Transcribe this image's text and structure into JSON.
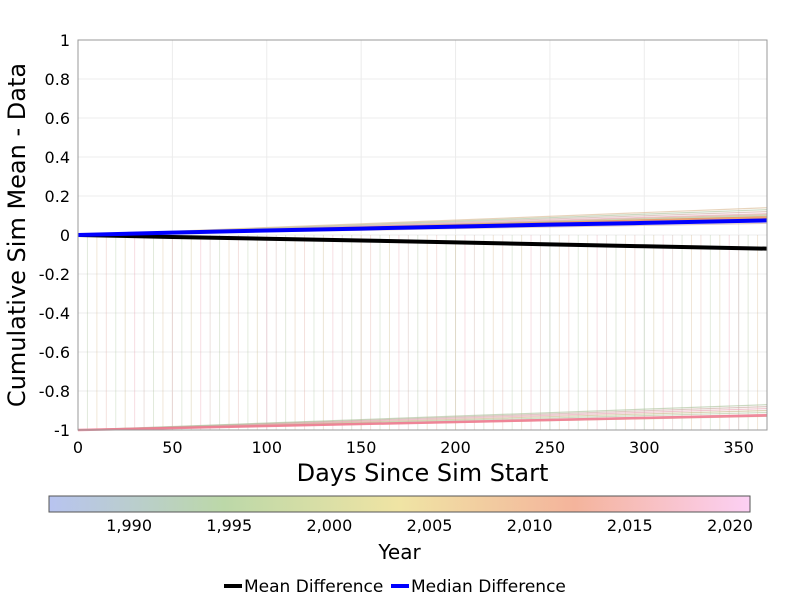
{
  "chart_data": {
    "type": "line",
    "xlabel": "Days Since Sim Start",
    "ylabel": "Cumulative Sim Mean - Data",
    "xlim": [
      0,
      365
    ],
    "ylim": [
      -1,
      1
    ],
    "x_ticks": [
      "0",
      "50",
      "100",
      "150",
      "200",
      "250",
      "300",
      "350"
    ],
    "x_tick_values": [
      0,
      50,
      100,
      150,
      200,
      250,
      300,
      350
    ],
    "y_ticks": [
      "1",
      "0.8",
      "0.6",
      "0.4",
      "0.2",
      "0",
      "-0.2",
      "-0.4",
      "-0.6",
      "-0.8",
      "-1"
    ],
    "y_tick_values": [
      1,
      0.8,
      0.6,
      0.4,
      0.2,
      0,
      -0.2,
      -0.4,
      -0.6,
      -0.8,
      -1
    ],
    "grid": true,
    "series": [
      {
        "name": "Mean Difference",
        "color": "#000000",
        "x": [
          0,
          50,
          100,
          150,
          200,
          250,
          300,
          365
        ],
        "values": [
          0,
          -0.01,
          -0.019,
          -0.028,
          -0.038,
          -0.048,
          -0.058,
          -0.07
        ]
      },
      {
        "name": "Median Difference",
        "color": "#0000ff",
        "x": [
          0,
          50,
          100,
          150,
          200,
          250,
          300,
          365
        ],
        "values": [
          0,
          0.012,
          0.023,
          0.033,
          0.043,
          0.053,
          0.062,
          0.075
        ]
      }
    ],
    "ensemble_upper_endpoints": [
      0.06,
      0.075,
      0.085,
      0.095,
      0.1,
      0.105,
      0.11,
      0.12,
      0.13,
      0.14
    ],
    "ensemble_lower_endpoints": [
      -0.93,
      -0.92,
      -0.91,
      -0.9,
      -0.89,
      -0.88,
      -0.87
    ],
    "colorbar": {
      "title": "Year",
      "ticks": [
        "1,990",
        "1,995",
        "2,000",
        "2,005",
        "2,010",
        "2,015",
        "2,020"
      ],
      "tick_values": [
        1990,
        1995,
        2000,
        2005,
        2010,
        2015,
        2020
      ],
      "range": [
        1986,
        2021
      ],
      "colors": [
        "#b8c4f0",
        "#bcd8a8",
        "#f0e4a4",
        "#f4b49c",
        "#fcd0f4"
      ]
    },
    "legend": {
      "placement": "bottom-center",
      "entries": [
        "Mean Difference",
        "Median Difference"
      ]
    }
  }
}
